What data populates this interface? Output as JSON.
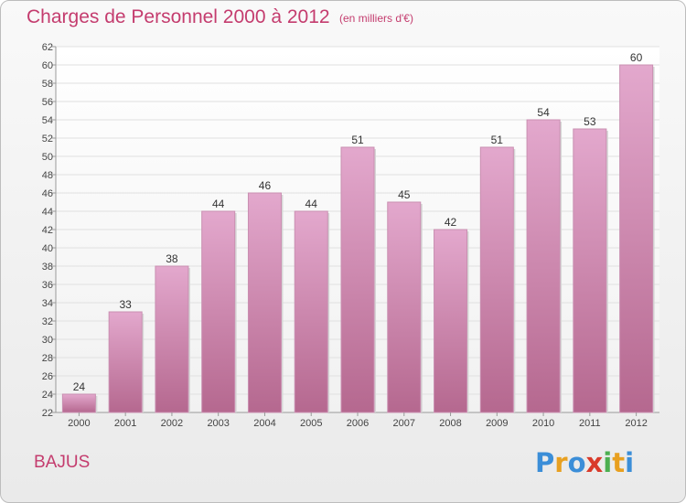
{
  "header": {
    "title": "Charges de Personnel 2000 à 2012",
    "subtitle": "(en milliers d'€)"
  },
  "footer": {
    "commune": "BAJUS",
    "logo_text": "Proxiti"
  },
  "colors": {
    "title": "#c43c6e",
    "bar_top": "#e3a8cd",
    "bar_bottom": "#b5688f",
    "grid": "#e0e0e0",
    "axis": "#999999"
  },
  "chart_data": {
    "type": "bar",
    "categories": [
      "2000",
      "2001",
      "2002",
      "2003",
      "2004",
      "2005",
      "2006",
      "2007",
      "2008",
      "2009",
      "2010",
      "2011",
      "2012"
    ],
    "values": [
      24,
      33,
      38,
      44,
      46,
      44,
      51,
      45,
      42,
      51,
      54,
      53,
      60
    ],
    "data_labels": [
      "24",
      "33",
      "38",
      "44",
      "46",
      "44",
      "51",
      "45",
      "42",
      "51",
      "54",
      "53",
      "60"
    ],
    "title": "Charges de Personnel 2000 à 2012",
    "subtitle": "(en milliers d'€)",
    "xlabel": "",
    "ylabel": "",
    "ylim": [
      22,
      62
    ],
    "yticks": [
      22,
      24,
      26,
      28,
      30,
      32,
      34,
      36,
      38,
      40,
      42,
      44,
      46,
      48,
      50,
      52,
      54,
      56,
      58,
      60,
      62
    ],
    "grid": true
  }
}
